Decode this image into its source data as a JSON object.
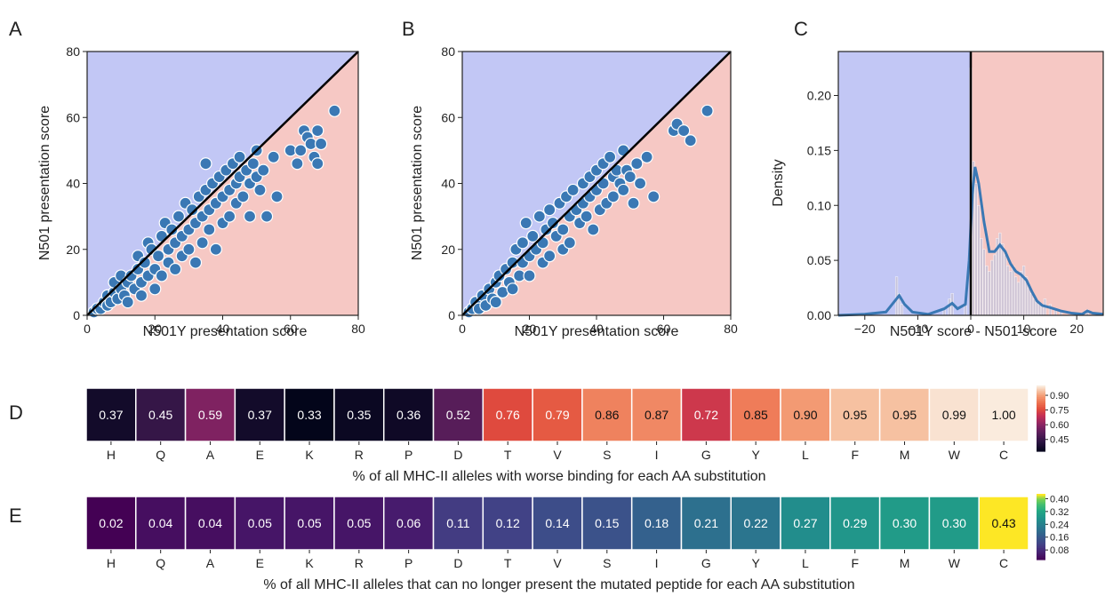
{
  "panels": {
    "A": {
      "label": "A",
      "chart_data": {
        "type": "scatter",
        "xlabel": "N501Y presentation score",
        "ylabel": "N501 presentation score",
        "xlim": [
          0,
          80
        ],
        "ylim": [
          0,
          80
        ],
        "xticks": [
          "0",
          "20",
          "40",
          "60",
          "80"
        ],
        "yticks": [
          "0",
          "20",
          "40",
          "60",
          "80"
        ],
        "background_colors": {
          "upper_left": "#c2c7f5",
          "lower_right": "#f6c8c4"
        },
        "point_color": "#3a78b4",
        "diagonal": "y = x",
        "points": [
          [
            2,
            1
          ],
          [
            3,
            2
          ],
          [
            4,
            2
          ],
          [
            5,
            4
          ],
          [
            6,
            3
          ],
          [
            6,
            6
          ],
          [
            7,
            4
          ],
          [
            8,
            7
          ],
          [
            8,
            10
          ],
          [
            9,
            5
          ],
          [
            10,
            8
          ],
          [
            10,
            12
          ],
          [
            11,
            6
          ],
          [
            12,
            10
          ],
          [
            12,
            4
          ],
          [
            13,
            12
          ],
          [
            14,
            8
          ],
          [
            15,
            14
          ],
          [
            15,
            18
          ],
          [
            16,
            10
          ],
          [
            16,
            6
          ],
          [
            17,
            16
          ],
          [
            18,
            12
          ],
          [
            18,
            22
          ],
          [
            19,
            20
          ],
          [
            20,
            14
          ],
          [
            20,
            8
          ],
          [
            21,
            18
          ],
          [
            22,
            24
          ],
          [
            22,
            12
          ],
          [
            23,
            28
          ],
          [
            24,
            20
          ],
          [
            24,
            16
          ],
          [
            25,
            26
          ],
          [
            26,
            22
          ],
          [
            26,
            14
          ],
          [
            27,
            30
          ],
          [
            28,
            24
          ],
          [
            28,
            18
          ],
          [
            29,
            34
          ],
          [
            30,
            26
          ],
          [
            30,
            20
          ],
          [
            31,
            32
          ],
          [
            32,
            28
          ],
          [
            32,
            16
          ],
          [
            33,
            36
          ],
          [
            34,
            30
          ],
          [
            34,
            22
          ],
          [
            35,
            38
          ],
          [
            35,
            46
          ],
          [
            36,
            32
          ],
          [
            36,
            26
          ],
          [
            37,
            40
          ],
          [
            38,
            34
          ],
          [
            38,
            20
          ],
          [
            39,
            42
          ],
          [
            40,
            36
          ],
          [
            40,
            28
          ],
          [
            41,
            44
          ],
          [
            42,
            38
          ],
          [
            42,
            30
          ],
          [
            43,
            46
          ],
          [
            44,
            40
          ],
          [
            44,
            34
          ],
          [
            45,
            48
          ],
          [
            45,
            42
          ],
          [
            46,
            36
          ],
          [
            47,
            44
          ],
          [
            48,
            40
          ],
          [
            48,
            30
          ],
          [
            49,
            46
          ],
          [
            50,
            42
          ],
          [
            50,
            50
          ],
          [
            51,
            38
          ],
          [
            52,
            44
          ],
          [
            53,
            30
          ],
          [
            55,
            48
          ],
          [
            56,
            36
          ],
          [
            60,
            50
          ],
          [
            62,
            46
          ],
          [
            63,
            50
          ],
          [
            64,
            56
          ],
          [
            65,
            54
          ],
          [
            66,
            52
          ],
          [
            67,
            48
          ],
          [
            68,
            56
          ],
          [
            68,
            46
          ],
          [
            69,
            52
          ],
          [
            73,
            62
          ]
        ]
      }
    },
    "B": {
      "label": "B",
      "chart_data": {
        "type": "scatter",
        "xlabel": "N501Y presentation score",
        "ylabel": "N501 presentation score",
        "xlim": [
          0,
          80
        ],
        "ylim": [
          0,
          80
        ],
        "xticks": [
          "0",
          "20",
          "40",
          "60",
          "80"
        ],
        "yticks": [
          "0",
          "20",
          "40",
          "60",
          "80"
        ],
        "background_colors": {
          "upper_left": "#c2c7f5",
          "lower_right": "#f6c8c4"
        },
        "point_color": "#3a78b4",
        "diagonal": "y = x",
        "points": [
          [
            2,
            1
          ],
          [
            3,
            2
          ],
          [
            4,
            4
          ],
          [
            5,
            2
          ],
          [
            6,
            6
          ],
          [
            7,
            3
          ],
          [
            8,
            8
          ],
          [
            9,
            5
          ],
          [
            10,
            10
          ],
          [
            10,
            4
          ],
          [
            11,
            12
          ],
          [
            12,
            7
          ],
          [
            13,
            14
          ],
          [
            14,
            10
          ],
          [
            15,
            16
          ],
          [
            15,
            8
          ],
          [
            16,
            20
          ],
          [
            17,
            12
          ],
          [
            18,
            22
          ],
          [
            18,
            16
          ],
          [
            19,
            28
          ],
          [
            20,
            18
          ],
          [
            20,
            12
          ],
          [
            21,
            24
          ],
          [
            22,
            20
          ],
          [
            23,
            30
          ],
          [
            24,
            22
          ],
          [
            24,
            16
          ],
          [
            25,
            26
          ],
          [
            26,
            32
          ],
          [
            26,
            18
          ],
          [
            27,
            28
          ],
          [
            28,
            24
          ],
          [
            29,
            34
          ],
          [
            30,
            26
          ],
          [
            30,
            20
          ],
          [
            31,
            36
          ],
          [
            32,
            30
          ],
          [
            32,
            22
          ],
          [
            33,
            38
          ],
          [
            34,
            32
          ],
          [
            35,
            28
          ],
          [
            36,
            40
          ],
          [
            36,
            34
          ],
          [
            37,
            30
          ],
          [
            38,
            42
          ],
          [
            38,
            36
          ],
          [
            39,
            26
          ],
          [
            40,
            44
          ],
          [
            40,
            38
          ],
          [
            41,
            32
          ],
          [
            42,
            46
          ],
          [
            42,
            40
          ],
          [
            43,
            34
          ],
          [
            44,
            48
          ],
          [
            45,
            42
          ],
          [
            45,
            36
          ],
          [
            46,
            44
          ],
          [
            47,
            40
          ],
          [
            48,
            50
          ],
          [
            48,
            38
          ],
          [
            49,
            44
          ],
          [
            50,
            42
          ],
          [
            51,
            34
          ],
          [
            52,
            46
          ],
          [
            53,
            40
          ],
          [
            55,
            48
          ],
          [
            57,
            36
          ],
          [
            63,
            56
          ],
          [
            64,
            58
          ],
          [
            66,
            56
          ],
          [
            68,
            53
          ],
          [
            73,
            62
          ]
        ]
      }
    },
    "C": {
      "label": "C",
      "chart_data": {
        "type": "histogram",
        "xlabel": "N501Y score - N501 score",
        "ylabel": "Density",
        "xlim": [
          -25,
          25
        ],
        "ylim": [
          0,
          0.24
        ],
        "xticks": [
          "−20",
          "−10",
          "0",
          "10",
          "20"
        ],
        "yticks": [
          "0.00",
          "0.05",
          "0.10",
          "0.15",
          "0.20"
        ],
        "background_colors": {
          "left": "#c2c7f5",
          "right": "#f6c8c4"
        },
        "vline_x": 0,
        "bins": [
          [
            -14,
            0.035
          ],
          [
            -13.5,
            0.02
          ],
          [
            -13,
            0.01
          ],
          [
            -5,
            0.005
          ],
          [
            -4,
            0.015
          ],
          [
            -3.5,
            0.02
          ],
          [
            -1,
            0.01
          ],
          [
            0,
            0.225
          ],
          [
            0.5,
            0.14
          ],
          [
            1,
            0.12
          ],
          [
            1.5,
            0.1
          ],
          [
            2,
            0.07
          ],
          [
            2.5,
            0.06
          ],
          [
            3,
            0.045
          ],
          [
            3.5,
            0.04
          ],
          [
            4,
            0.05
          ],
          [
            4.5,
            0.055
          ],
          [
            5,
            0.07
          ],
          [
            5.5,
            0.075
          ],
          [
            6,
            0.065
          ],
          [
            6.5,
            0.055
          ],
          [
            7,
            0.045
          ],
          [
            7.5,
            0.04
          ],
          [
            8,
            0.045
          ],
          [
            8.5,
            0.035
          ],
          [
            9,
            0.03
          ],
          [
            9.5,
            0.04
          ],
          [
            10,
            0.045
          ],
          [
            10.5,
            0.035
          ],
          [
            11,
            0.025
          ],
          [
            11.5,
            0.02
          ],
          [
            12,
            0.015
          ],
          [
            12.5,
            0.012
          ],
          [
            13,
            0.01
          ],
          [
            13.5,
            0.008
          ],
          [
            14,
            0.015
          ],
          [
            15,
            0.01
          ],
          [
            16,
            0.006
          ],
          [
            17,
            0.004
          ],
          [
            22,
            0.005
          ]
        ],
        "kde": [
          [
            -25,
            0
          ],
          [
            -20,
            0.001
          ],
          [
            -16,
            0.003
          ],
          [
            -14.5,
            0.012
          ],
          [
            -13.5,
            0.018
          ],
          [
            -12.5,
            0.01
          ],
          [
            -11,
            0.003
          ],
          [
            -8,
            0.001
          ],
          [
            -5,
            0.006
          ],
          [
            -3.5,
            0.011
          ],
          [
            -2.5,
            0.006
          ],
          [
            -1,
            0.01
          ],
          [
            -0.3,
            0.05
          ],
          [
            0.3,
            0.11
          ],
          [
            0.8,
            0.135
          ],
          [
            1.5,
            0.12
          ],
          [
            2.5,
            0.085
          ],
          [
            3.5,
            0.058
          ],
          [
            4.5,
            0.058
          ],
          [
            5.5,
            0.064
          ],
          [
            6.5,
            0.058
          ],
          [
            7.5,
            0.047
          ],
          [
            8.5,
            0.04
          ],
          [
            9.5,
            0.037
          ],
          [
            10.5,
            0.032
          ],
          [
            11.5,
            0.022
          ],
          [
            12.5,
            0.013
          ],
          [
            13.5,
            0.009
          ],
          [
            15,
            0.007
          ],
          [
            17,
            0.004
          ],
          [
            19,
            0.002
          ],
          [
            21,
            0.001
          ],
          [
            22,
            0.004
          ],
          [
            23,
            0.002
          ],
          [
            25,
            0.001
          ]
        ],
        "kde_color": "#3a78b4"
      }
    },
    "D": {
      "label": "D",
      "chart_data": {
        "type": "heatmap",
        "categories": [
          "H",
          "Q",
          "A",
          "E",
          "K",
          "R",
          "P",
          "D",
          "T",
          "V",
          "S",
          "I",
          "G",
          "Y",
          "L",
          "F",
          "M",
          "W",
          "C"
        ],
        "values": [
          0.37,
          0.45,
          0.59,
          0.37,
          0.33,
          0.35,
          0.36,
          0.52,
          0.76,
          0.79,
          0.86,
          0.87,
          0.72,
          0.85,
          0.9,
          0.95,
          0.95,
          0.99,
          1.0
        ],
        "labels": [
          "0.37",
          "0.45",
          "0.59",
          "0.37",
          "0.33",
          "0.35",
          "0.36",
          "0.52",
          "0.76",
          "0.79",
          "0.86",
          "0.87",
          "0.72",
          "0.85",
          "0.90",
          "0.95",
          "0.95",
          "0.99",
          "1.00"
        ],
        "xlabel": "% of all MHC-II alleles with worse binding for each AA substitution",
        "colormap": "rocket",
        "vmin": 0.33,
        "vmax": 1.0,
        "colorbar_ticks": [
          "0.90",
          "0.75",
          "0.60",
          "0.45"
        ],
        "colorbar_tick_values": [
          0.9,
          0.75,
          0.6,
          0.45
        ]
      }
    },
    "E": {
      "label": "E",
      "chart_data": {
        "type": "heatmap",
        "categories": [
          "H",
          "Q",
          "A",
          "E",
          "K",
          "R",
          "P",
          "D",
          "T",
          "V",
          "S",
          "I",
          "G",
          "Y",
          "L",
          "F",
          "M",
          "W",
          "C"
        ],
        "values": [
          0.02,
          0.04,
          0.04,
          0.05,
          0.05,
          0.05,
          0.06,
          0.11,
          0.12,
          0.14,
          0.15,
          0.18,
          0.21,
          0.22,
          0.27,
          0.29,
          0.3,
          0.3,
          0.43
        ],
        "labels": [
          "0.02",
          "0.04",
          "0.04",
          "0.05",
          "0.05",
          "0.05",
          "0.06",
          "0.11",
          "0.12",
          "0.14",
          "0.15",
          "0.18",
          "0.21",
          "0.22",
          "0.27",
          "0.29",
          "0.30",
          "0.30",
          "0.43"
        ],
        "xlabel": "% of all MHC-II alleles that can no longer present the mutated peptide for each AA substitution",
        "colormap": "viridis",
        "vmin": 0.02,
        "vmax": 0.43,
        "colorbar_ticks": [
          "0.40",
          "0.32",
          "0.24",
          "0.16",
          "0.08"
        ],
        "colorbar_tick_values": [
          0.4,
          0.32,
          0.24,
          0.16,
          0.08
        ]
      }
    }
  }
}
